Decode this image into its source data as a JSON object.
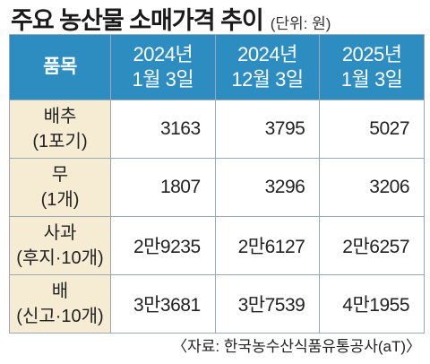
{
  "header": {
    "title": "주요 농산물 소매가격 추이",
    "unit": "(단위: 원)"
  },
  "table": {
    "columns": [
      {
        "line1": "품목",
        "line2": ""
      },
      {
        "line1": "2024년",
        "line2": "1월 3일"
      },
      {
        "line1": "2024년",
        "line2": "12월 3일"
      },
      {
        "line1": "2025년",
        "line2": "1월 3일"
      }
    ],
    "rows": [
      {
        "item": "배추",
        "unit": "(1포기)",
        "values": [
          "3163",
          "3795",
          "5027"
        ]
      },
      {
        "item": "무",
        "unit": "(1개)",
        "values": [
          "1807",
          "3296",
          "3206"
        ]
      },
      {
        "item": "사과",
        "unit": "(후지·10개)",
        "values": [
          "2만9235",
          "2만6127",
          "2만6257"
        ]
      },
      {
        "item": "배",
        "unit": "(신고·10개)",
        "values": [
          "3만3681",
          "3만7539",
          "4만1955"
        ]
      }
    ]
  },
  "footer": {
    "source": "〈자료: 한국농수산식품유통공사(aT)〉"
  },
  "colors": {
    "header_bg": "#2d8dc0",
    "item_bg": "#f6ecd4",
    "border": "#9aa9b4"
  }
}
